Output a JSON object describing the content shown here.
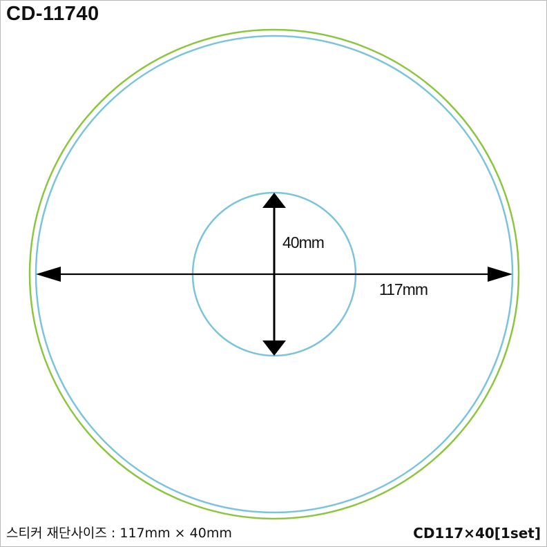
{
  "title": "CD-11740",
  "diagram": {
    "outer_diameter_label": "117mm",
    "inner_diameter_label": "40mm",
    "colors": {
      "outer_ring": "#8cc63f",
      "cut_line": "#7bc4dc",
      "dimension": "#000000"
    }
  },
  "footer": {
    "size_caption": "스티커 재단사이즈 : 117mm × 40mm",
    "product_code": "CD117×40[1set]"
  }
}
